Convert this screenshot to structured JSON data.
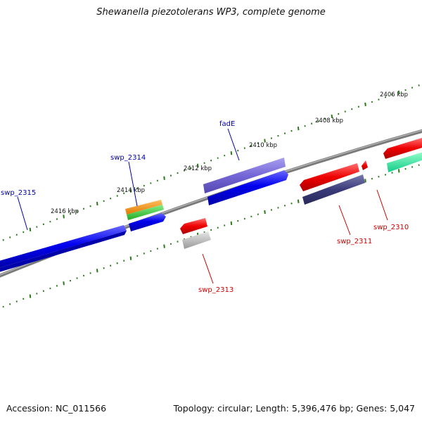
{
  "title": "Shewanella piezotolerans WP3, complete genome",
  "footer": {
    "accession": "Accession: NC_011566",
    "stats": "Topology: circular; Length: 5,396,476 bp; Genes: 5,047"
  },
  "ticks": [
    "2406 kbp",
    "2408 kbp",
    "2410 kbp",
    "2412 kbp",
    "2414 kbp",
    "2416 kbp"
  ],
  "gene_labels": {
    "fadE": "fadE",
    "swp_2314": "swp_2314",
    "swp_2315": "swp_2315",
    "swp_2313": "swp_2313",
    "swp_2311": "swp_2311",
    "swp_2310": "swp_2310"
  },
  "colors": {
    "forward_label": "#0000aa",
    "reverse_label": "#cc0000",
    "tick": "#2a7a1a",
    "backbone": "#808080",
    "blue": "#0000ee",
    "purple": "#6a5acd",
    "red": "#ee0000",
    "dark_purple": "#3b3b7a",
    "orange": "#f08c00",
    "green": "#33bb33",
    "teal": "#22dd99",
    "gray": "#aaaaaa"
  }
}
